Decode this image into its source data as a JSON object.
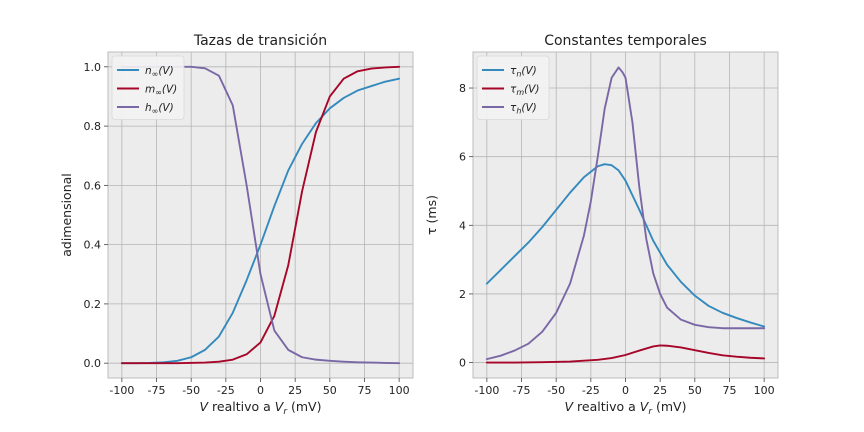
{
  "chart_data": [
    {
      "type": "line",
      "title": "Tazas de transición",
      "xlabel_parts": [
        "V",
        " realtivo a ",
        "V",
        "r",
        " (mV)"
      ],
      "ylabel": "adimensional",
      "xlim": [
        -110,
        110
      ],
      "ylim": [
        -0.05,
        1.05
      ],
      "xticks": [
        -100,
        -75,
        -50,
        -25,
        0,
        25,
        50,
        75,
        100
      ],
      "yticks": [
        0.0,
        0.2,
        0.4,
        0.6,
        0.8,
        1.0
      ],
      "ytick_labels": [
        "0.0",
        "0.2",
        "0.4",
        "0.6",
        "0.8",
        "1.0"
      ],
      "grid": true,
      "legend_position": "top-left",
      "series": [
        {
          "name": "n∞(V)",
          "legend_main": "n",
          "legend_sub": "∞",
          "legend_tail": "(V)",
          "color": "#348ABD",
          "x": [
            -100,
            -90,
            -80,
            -70,
            -60,
            -50,
            -40,
            -30,
            -20,
            -10,
            0,
            10,
            20,
            30,
            40,
            50,
            60,
            70,
            80,
            90,
            100
          ],
          "y": [
            0.0,
            0.0,
            0.001,
            0.003,
            0.008,
            0.02,
            0.045,
            0.09,
            0.17,
            0.28,
            0.4,
            0.53,
            0.65,
            0.74,
            0.81,
            0.86,
            0.895,
            0.92,
            0.935,
            0.95,
            0.96
          ]
        },
        {
          "name": "m∞(V)",
          "legend_main": "m",
          "legend_sub": "∞",
          "legend_tail": "(V)",
          "color": "#A60628",
          "x": [
            -100,
            -80,
            -60,
            -40,
            -30,
            -20,
            -10,
            0,
            10,
            20,
            30,
            40,
            50,
            60,
            70,
            80,
            90,
            100
          ],
          "y": [
            0.0,
            0.0,
            0.0,
            0.002,
            0.005,
            0.012,
            0.03,
            0.07,
            0.16,
            0.33,
            0.58,
            0.78,
            0.9,
            0.96,
            0.985,
            0.994,
            0.998,
            1.0
          ]
        },
        {
          "name": "h∞(V)",
          "legend_main": "h",
          "legend_sub": "∞",
          "legend_tail": "(V)",
          "color": "#7A68A6",
          "x": [
            -100,
            -90,
            -80,
            -70,
            -60,
            -50,
            -40,
            -30,
            -20,
            -10,
            0,
            10,
            20,
            30,
            40,
            50,
            60,
            70,
            80,
            90,
            100
          ],
          "y": [
            1.0,
            1.0,
            1.0,
            1.0,
            1.0,
            1.0,
            0.995,
            0.97,
            0.87,
            0.6,
            0.3,
            0.11,
            0.045,
            0.02,
            0.012,
            0.008,
            0.005,
            0.003,
            0.002,
            0.001,
            0.0
          ]
        }
      ]
    },
    {
      "type": "line",
      "title": "Constantes temporales",
      "xlabel_parts": [
        "V",
        " realtivo a ",
        "V",
        "r",
        " (mV)"
      ],
      "ylabel": "τ (ms)",
      "xlim": [
        -110,
        110
      ],
      "ylim": [
        -0.45,
        9.05
      ],
      "xticks": [
        -100,
        -75,
        -50,
        -25,
        0,
        25,
        50,
        75,
        100
      ],
      "yticks": [
        0,
        2,
        4,
        6,
        8
      ],
      "ytick_labels": [
        "0",
        "2",
        "4",
        "6",
        "8"
      ],
      "grid": true,
      "legend_position": "top-left",
      "series": [
        {
          "name": "τn(V)",
          "legend_main": "τ",
          "legend_sub": "n",
          "legend_tail": "(V)",
          "color": "#348ABD",
          "x": [
            -100,
            -90,
            -80,
            -70,
            -60,
            -50,
            -40,
            -30,
            -20,
            -15,
            -10,
            -5,
            0,
            10,
            20,
            30,
            40,
            50,
            60,
            70,
            80,
            90,
            100
          ],
          "y": [
            2.3,
            2.7,
            3.1,
            3.5,
            3.95,
            4.45,
            4.95,
            5.4,
            5.72,
            5.78,
            5.75,
            5.6,
            5.3,
            4.45,
            3.55,
            2.85,
            2.35,
            1.95,
            1.65,
            1.45,
            1.3,
            1.17,
            1.05
          ]
        },
        {
          "name": "τm(V)",
          "legend_main": "τ",
          "legend_sub": "m",
          "legend_tail": "(V)",
          "color": "#A60628",
          "x": [
            -100,
            -80,
            -60,
            -40,
            -20,
            -10,
            0,
            10,
            20,
            25,
            30,
            40,
            50,
            60,
            70,
            80,
            90,
            100
          ],
          "y": [
            0.0,
            0.0,
            0.01,
            0.03,
            0.08,
            0.13,
            0.22,
            0.35,
            0.47,
            0.5,
            0.49,
            0.44,
            0.36,
            0.28,
            0.21,
            0.17,
            0.14,
            0.12
          ]
        },
        {
          "name": "τh(V)",
          "legend_main": "τ",
          "legend_sub": "h",
          "legend_tail": "(V)",
          "color": "#7A68A6",
          "x": [
            -100,
            -90,
            -80,
            -70,
            -60,
            -50,
            -40,
            -30,
            -25,
            -20,
            -15,
            -10,
            -5,
            -2,
            0,
            5,
            10,
            15,
            20,
            25,
            30,
            40,
            50,
            60,
            70,
            80,
            90,
            100
          ],
          "y": [
            0.1,
            0.2,
            0.35,
            0.55,
            0.9,
            1.45,
            2.3,
            3.7,
            4.7,
            6.0,
            7.4,
            8.3,
            8.6,
            8.45,
            8.3,
            7.0,
            5.1,
            3.6,
            2.6,
            2.0,
            1.6,
            1.25,
            1.1,
            1.03,
            1.0,
            1.0,
            1.0,
            1.0
          ]
        }
      ]
    }
  ]
}
